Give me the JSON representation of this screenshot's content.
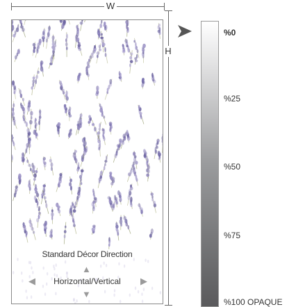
{
  "dimensions": {
    "width_label": "W",
    "height_label": "H"
  },
  "panel": {
    "direction_title": "Standard Décor Direction",
    "direction_label": "Horizontal/Vertical",
    "pattern": "lavender-flowers"
  },
  "opacity_scale": {
    "labels": [
      "%0",
      "%25",
      "%50",
      "%75",
      "%100 OPAQUE"
    ],
    "selected": "%0"
  },
  "colors": {
    "lavender": "#8a7fb3",
    "stem": "#9aa06a",
    "pointer": "#555555"
  },
  "icons": {
    "up": "triangle-up",
    "down": "triangle-down",
    "left": "triangle-left",
    "right": "triangle-right"
  }
}
